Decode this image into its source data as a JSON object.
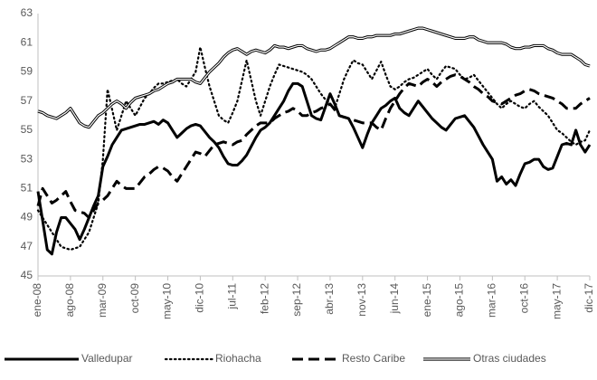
{
  "chart_data": {
    "type": "line",
    "categories": [
      "ene-08",
      null,
      null,
      null,
      null,
      null,
      null,
      "ago-08",
      null,
      null,
      null,
      null,
      null,
      null,
      "mar-09",
      null,
      null,
      null,
      null,
      null,
      null,
      "oct-09",
      null,
      null,
      null,
      null,
      null,
      null,
      "may-10",
      null,
      null,
      null,
      null,
      null,
      null,
      "dic-10",
      null,
      null,
      null,
      null,
      null,
      null,
      "jul-11",
      null,
      null,
      null,
      null,
      null,
      null,
      "feb-12",
      null,
      null,
      null,
      null,
      null,
      null,
      "sep-12",
      null,
      null,
      null,
      null,
      null,
      null,
      "abr-13",
      null,
      null,
      null,
      null,
      null,
      null,
      "nov-13",
      null,
      null,
      null,
      null,
      null,
      null,
      "jun-14",
      null,
      null,
      null,
      null,
      null,
      null,
      "ene-15",
      null,
      null,
      null,
      null,
      null,
      null,
      "ago-15",
      null,
      null,
      null,
      null,
      null,
      null,
      "mar-16",
      null,
      null,
      null,
      null,
      null,
      null,
      "oct-16",
      null,
      null,
      null,
      null,
      null,
      null,
      "may-17",
      null,
      null,
      null,
      null,
      null,
      null,
      "dic-17"
    ],
    "ylim": [
      45,
      63
    ],
    "yticks": [
      45,
      47,
      49,
      51,
      53,
      55,
      57,
      59,
      61,
      63
    ],
    "grid": false,
    "legend": "bottom",
    "series": [
      {
        "name": "Valledupar",
        "color": "#000000",
        "style": "solid",
        "values": [
          50.8,
          48.8,
          46.8,
          46.5,
          48.0,
          49.0,
          49.0,
          48.6,
          48.2,
          47.5,
          48.2,
          49.0,
          49.8,
          50.5,
          52.5,
          53.2,
          54.0,
          54.5,
          55.0,
          55.1,
          55.2,
          55.3,
          55.4,
          55.4,
          55.5,
          55.6,
          55.4,
          55.7,
          55.5,
          55.0,
          54.5,
          54.8,
          55.1,
          55.3,
          55.4,
          55.3,
          54.9,
          54.5,
          54.2,
          53.8,
          53.2,
          52.7,
          52.6,
          52.6,
          52.9,
          53.3,
          53.9,
          54.5,
          55.0,
          55.2,
          55.5,
          56.0,
          56.5,
          57.0,
          57.7,
          58.2,
          58.2,
          58.0,
          57.0,
          56.0,
          55.8,
          55.7,
          56.6,
          57.5,
          56.8,
          56.0,
          55.9,
          55.8,
          55.2,
          54.5,
          53.8,
          54.7,
          55.5,
          56.0,
          56.5,
          56.7,
          57.0,
          57.2,
          56.5,
          56.2,
          56.0,
          56.5,
          57.0,
          56.6,
          56.2,
          55.8,
          55.5,
          55.2,
          55.0,
          55.4,
          55.8,
          55.9,
          56.0,
          55.6,
          55.2,
          54.6,
          54.0,
          53.5,
          53.0,
          51.5,
          51.8,
          51.3,
          51.6,
          51.2,
          52.0,
          52.7,
          52.8,
          53.0,
          53.0,
          52.5,
          52.3,
          52.4,
          53.2,
          54.0,
          54.1,
          54.0,
          55.0,
          54.0,
          53.5,
          54.0
        ]
      },
      {
        "name": "Riohacha",
        "color": "#000000",
        "style": "dotted",
        "values": [
          49.5,
          49.0,
          48.5,
          48.0,
          47.5,
          47.0,
          46.9,
          46.8,
          46.9,
          47.0,
          47.5,
          48.0,
          49.0,
          50.0,
          53.0,
          57.8,
          56.4,
          55.0,
          56.0,
          57.0,
          56.5,
          56.0,
          56.6,
          57.2,
          57.5,
          57.9,
          58.2,
          58.2,
          58.3,
          58.4,
          58.5,
          58.2,
          58.0,
          58.5,
          59.0,
          60.7,
          59.3,
          58.0,
          57.0,
          56.0,
          55.7,
          55.5,
          56.2,
          57.0,
          58.4,
          59.8,
          58.4,
          57.0,
          56.0,
          57.0,
          58.0,
          58.8,
          59.5,
          59.4,
          59.3,
          59.2,
          59.1,
          59.0,
          58.8,
          58.5,
          58.0,
          57.5,
          57.1,
          56.8,
          56.5,
          57.5,
          58.5,
          59.2,
          59.8,
          59.6,
          59.5,
          59.0,
          58.5,
          59.1,
          59.7,
          58.8,
          58.0,
          57.8,
          58.0,
          58.3,
          58.5,
          58.6,
          58.8,
          59.0,
          59.2,
          58.8,
          58.5,
          59.0,
          59.4,
          59.3,
          59.2,
          58.8,
          58.5,
          58.6,
          58.8,
          58.4,
          58.0,
          57.6,
          57.2,
          56.8,
          56.5,
          56.8,
          57.0,
          56.8,
          56.6,
          56.5,
          56.8,
          57.0,
          56.6,
          56.3,
          56.0,
          55.5,
          55.0,
          54.8,
          54.5,
          54.2,
          54.0,
          54.2,
          54.3,
          55.0
        ]
      },
      {
        "name": "Resto Caribe",
        "color": "#000000",
        "style": "dashed",
        "values": [
          49.8,
          51.0,
          50.5,
          50.0,
          50.2,
          50.5,
          50.8,
          50.1,
          49.5,
          49.4,
          49.3,
          49.0,
          49.5,
          50.0,
          50.2,
          50.5,
          51.0,
          51.5,
          51.2,
          51.0,
          51.0,
          51.0,
          51.4,
          51.8,
          52.0,
          52.3,
          52.5,
          52.4,
          52.2,
          51.8,
          51.5,
          52.0,
          52.5,
          53.0,
          53.5,
          53.4,
          53.2,
          53.6,
          54.0,
          54.1,
          54.2,
          54.1,
          54.0,
          54.2,
          54.3,
          54.7,
          55.0,
          55.3,
          55.5,
          55.5,
          55.5,
          55.8,
          56.0,
          56.2,
          56.3,
          56.5,
          56.3,
          56.0,
          56.0,
          56.2,
          56.3,
          56.5,
          56.6,
          56.8,
          56.4,
          56.0,
          55.9,
          55.8,
          55.7,
          55.6,
          55.5,
          55.5,
          55.5,
          55.2,
          55.0,
          55.8,
          56.5,
          57.0,
          57.5,
          57.9,
          58.2,
          58.1,
          58.0,
          58.3,
          58.5,
          58.3,
          58.0,
          58.3,
          58.5,
          58.7,
          58.8,
          58.7,
          58.5,
          58.3,
          58.0,
          57.8,
          57.5,
          57.3,
          57.0,
          56.9,
          56.8,
          57.0,
          57.2,
          57.4,
          57.5,
          57.7,
          57.8,
          57.7,
          57.5,
          57.4,
          57.3,
          57.2,
          57.0,
          56.8,
          56.5,
          56.5,
          56.5,
          56.8,
          57.0,
          57.2
        ]
      },
      {
        "name": "Otras ciudades",
        "color": "#000000",
        "style": "double",
        "values": [
          56.3,
          56.2,
          56.0,
          55.9,
          55.8,
          56.0,
          56.2,
          56.5,
          56.0,
          55.5,
          55.3,
          55.2,
          55.6,
          56.0,
          56.2,
          56.5,
          56.8,
          57.0,
          56.8,
          56.5,
          56.9,
          57.2,
          57.3,
          57.4,
          57.5,
          57.7,
          57.8,
          58.0,
          58.2,
          58.3,
          58.5,
          58.5,
          58.5,
          58.5,
          58.3,
          58.2,
          58.6,
          59.0,
          59.3,
          59.6,
          60.0,
          60.3,
          60.5,
          60.6,
          60.4,
          60.2,
          60.4,
          60.5,
          60.4,
          60.3,
          60.5,
          60.8,
          60.7,
          60.7,
          60.6,
          60.7,
          60.8,
          60.8,
          60.6,
          60.5,
          60.4,
          60.5,
          60.5,
          60.6,
          60.8,
          61.0,
          61.2,
          61.4,
          61.4,
          61.3,
          61.3,
          61.4,
          61.4,
          61.5,
          61.5,
          61.5,
          61.5,
          61.6,
          61.6,
          61.7,
          61.8,
          61.9,
          62.0,
          62.0,
          61.9,
          61.8,
          61.7,
          61.6,
          61.5,
          61.4,
          61.3,
          61.3,
          61.3,
          61.4,
          61.4,
          61.2,
          61.1,
          61.0,
          61.0,
          61.0,
          61.0,
          60.9,
          60.7,
          60.6,
          60.6,
          60.7,
          60.7,
          60.8,
          60.8,
          60.8,
          60.6,
          60.5,
          60.3,
          60.2,
          60.2,
          60.2,
          60.0,
          59.8,
          59.5,
          59.4
        ]
      }
    ]
  }
}
